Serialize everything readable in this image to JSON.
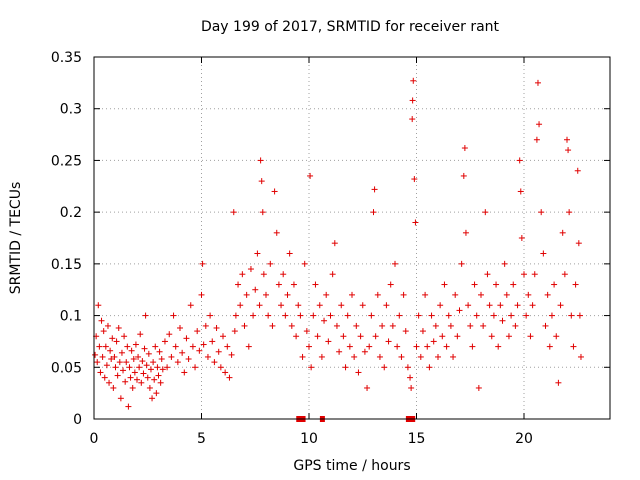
{
  "chart_data": {
    "type": "scatter",
    "title": "Day 199 of 2017, SRMTID for receiver rant",
    "xlabel": "GPS time / hours",
    "ylabel": "SRMTID / TECUs",
    "xlim": [
      0,
      24
    ],
    "ylim": [
      0,
      0.35
    ],
    "x_ticks": [
      0,
      5,
      10,
      15,
      20
    ],
    "y_ticks": [
      0,
      0.05,
      0.1,
      0.15,
      0.2,
      0.25,
      0.3,
      0.35
    ],
    "x_tick_labels": [
      "0",
      "5",
      "10",
      "15",
      "20"
    ],
    "y_tick_labels": [
      "0",
      "0.05",
      "0.1",
      "0.15",
      "0.2",
      "0.25",
      "0.3",
      "0.35"
    ],
    "grid": true,
    "marker": "+",
    "marker_color": "#e00000",
    "series": [
      {
        "name": "SRMTID",
        "points": [
          [
            0.05,
            0.062
          ],
          [
            0.1,
            0.08
          ],
          [
            0.15,
            0.055
          ],
          [
            0.2,
            0.11
          ],
          [
            0.25,
            0.07
          ],
          [
            0.3,
            0.045
          ],
          [
            0.35,
            0.095
          ],
          [
            0.4,
            0.06
          ],
          [
            0.45,
            0.085
          ],
          [
            0.5,
            0.04
          ],
          [
            0.55,
            0.07
          ],
          [
            0.6,
            0.052
          ],
          [
            0.65,
            0.09
          ],
          [
            0.7,
            0.035
          ],
          [
            0.75,
            0.066
          ],
          [
            0.8,
            0.058
          ],
          [
            0.85,
            0.078
          ],
          [
            0.9,
            0.03
          ],
          [
            0.95,
            0.06
          ],
          [
            1.0,
            0.05
          ],
          [
            1.05,
            0.075
          ],
          [
            1.1,
            0.042
          ],
          [
            1.15,
            0.088
          ],
          [
            1.2,
            0.055
          ],
          [
            1.25,
            0.02
          ],
          [
            1.3,
            0.064
          ],
          [
            1.35,
            0.047
          ],
          [
            1.4,
            0.08
          ],
          [
            1.45,
            0.036
          ],
          [
            1.5,
            0.055
          ],
          [
            1.55,
            0.07
          ],
          [
            1.6,
            0.012
          ],
          [
            1.65,
            0.05
          ],
          [
            1.7,
            0.04
          ],
          [
            1.75,
            0.066
          ],
          [
            1.8,
            0.03
          ],
          [
            1.85,
            0.058
          ],
          [
            1.9,
            0.045
          ],
          [
            1.95,
            0.072
          ],
          [
            2.0,
            0.038
          ],
          [
            2.05,
            0.06
          ],
          [
            2.1,
            0.05
          ],
          [
            2.15,
            0.082
          ],
          [
            2.2,
            0.035
          ],
          [
            2.25,
            0.056
          ],
          [
            2.3,
            0.044
          ],
          [
            2.35,
            0.068
          ],
          [
            2.4,
            0.1
          ],
          [
            2.45,
            0.052
          ],
          [
            2.5,
            0.04
          ],
          [
            2.55,
            0.063
          ],
          [
            2.6,
            0.03
          ],
          [
            2.65,
            0.048
          ],
          [
            2.7,
            0.02
          ],
          [
            2.75,
            0.055
          ],
          [
            2.8,
            0.038
          ],
          [
            2.85,
            0.07
          ],
          [
            2.9,
            0.025
          ],
          [
            2.95,
            0.05
          ],
          [
            3.0,
            0.042
          ],
          [
            3.05,
            0.065
          ],
          [
            3.1,
            0.035
          ],
          [
            3.15,
            0.058
          ],
          [
            3.2,
            0.048
          ],
          [
            3.3,
            0.075
          ],
          [
            3.4,
            0.05
          ],
          [
            3.5,
            0.082
          ],
          [
            3.6,
            0.06
          ],
          [
            3.7,
            0.1
          ],
          [
            3.8,
            0.07
          ],
          [
            3.9,
            0.055
          ],
          [
            4.0,
            0.088
          ],
          [
            4.1,
            0.064
          ],
          [
            4.2,
            0.045
          ],
          [
            4.3,
            0.078
          ],
          [
            4.4,
            0.058
          ],
          [
            4.5,
            0.11
          ],
          [
            4.6,
            0.07
          ],
          [
            4.7,
            0.05
          ],
          [
            4.8,
            0.085
          ],
          [
            4.9,
            0.066
          ],
          [
            5.0,
            0.12
          ],
          [
            5.05,
            0.15
          ],
          [
            5.1,
            0.072
          ],
          [
            5.2,
            0.09
          ],
          [
            5.3,
            0.06
          ],
          [
            5.4,
            0.1
          ],
          [
            5.5,
            0.075
          ],
          [
            5.6,
            0.055
          ],
          [
            5.7,
            0.088
          ],
          [
            5.8,
            0.065
          ],
          [
            5.9,
            0.05
          ],
          [
            6.0,
            0.08
          ],
          [
            6.1,
            0.045
          ],
          [
            6.2,
            0.07
          ],
          [
            6.3,
            0.04
          ],
          [
            6.4,
            0.062
          ],
          [
            6.5,
            0.2
          ],
          [
            6.55,
            0.085
          ],
          [
            6.6,
            0.1
          ],
          [
            6.7,
            0.13
          ],
          [
            6.8,
            0.11
          ],
          [
            6.9,
            0.14
          ],
          [
            7.0,
            0.09
          ],
          [
            7.1,
            0.12
          ],
          [
            7.2,
            0.07
          ],
          [
            7.3,
            0.145
          ],
          [
            7.4,
            0.1
          ],
          [
            7.5,
            0.125
          ],
          [
            7.6,
            0.16
          ],
          [
            7.7,
            0.11
          ],
          [
            7.75,
            0.25
          ],
          [
            7.8,
            0.23
          ],
          [
            7.85,
            0.2
          ],
          [
            7.9,
            0.14
          ],
          [
            8.0,
            0.12
          ],
          [
            8.1,
            0.1
          ],
          [
            8.2,
            0.15
          ],
          [
            8.3,
            0.09
          ],
          [
            8.4,
            0.22
          ],
          [
            8.5,
            0.18
          ],
          [
            8.6,
            0.13
          ],
          [
            8.7,
            0.11
          ],
          [
            8.8,
            0.14
          ],
          [
            8.9,
            0.1
          ],
          [
            9.0,
            0.12
          ],
          [
            9.1,
            0.16
          ],
          [
            9.2,
            0.09
          ],
          [
            9.3,
            0.13
          ],
          [
            9.4,
            0.08
          ],
          [
            9.5,
            0.11
          ],
          [
            9.6,
            0.1
          ],
          [
            9.7,
            0.06
          ],
          [
            9.8,
            0.15
          ],
          [
            9.9,
            0.085
          ],
          [
            10.0,
            0.07
          ],
          [
            10.05,
            0.235
          ],
          [
            10.1,
            0.05
          ],
          [
            10.2,
            0.1
          ],
          [
            10.3,
            0.13
          ],
          [
            10.4,
            0.08
          ],
          [
            10.5,
            0.11
          ],
          [
            10.6,
            0.06
          ],
          [
            10.7,
            0.095
          ],
          [
            10.8,
            0.12
          ],
          [
            10.9,
            0.075
          ],
          [
            11.0,
            0.1
          ],
          [
            11.1,
            0.14
          ],
          [
            11.2,
            0.17
          ],
          [
            11.3,
            0.09
          ],
          [
            11.4,
            0.065
          ],
          [
            11.5,
            0.11
          ],
          [
            11.6,
            0.08
          ],
          [
            11.7,
            0.05
          ],
          [
            11.8,
            0.1
          ],
          [
            11.9,
            0.07
          ],
          [
            12.0,
            0.12
          ],
          [
            12.1,
            0.06
          ],
          [
            12.2,
            0.09
          ],
          [
            12.3,
            0.045
          ],
          [
            12.4,
            0.08
          ],
          [
            12.5,
            0.11
          ],
          [
            12.6,
            0.065
          ],
          [
            12.7,
            0.03
          ],
          [
            12.8,
            0.07
          ],
          [
            12.9,
            0.1
          ],
          [
            13.0,
            0.2
          ],
          [
            13.05,
            0.222
          ],
          [
            13.1,
            0.08
          ],
          [
            13.2,
            0.12
          ],
          [
            13.3,
            0.06
          ],
          [
            13.4,
            0.09
          ],
          [
            13.5,
            0.05
          ],
          [
            13.6,
            0.11
          ],
          [
            13.7,
            0.075
          ],
          [
            13.8,
            0.13
          ],
          [
            13.9,
            0.09
          ],
          [
            14.0,
            0.15
          ],
          [
            14.1,
            0.07
          ],
          [
            14.2,
            0.1
          ],
          [
            14.3,
            0.06
          ],
          [
            14.4,
            0.12
          ],
          [
            14.5,
            0.085
          ],
          [
            14.6,
            0.05
          ],
          [
            14.7,
            0.04
          ],
          [
            14.75,
            0.03
          ],
          [
            14.8,
            0.29
          ],
          [
            14.82,
            0.308
          ],
          [
            14.85,
            0.327
          ],
          [
            14.9,
            0.232
          ],
          [
            14.95,
            0.19
          ],
          [
            15.0,
            0.07
          ],
          [
            15.1,
            0.1
          ],
          [
            15.2,
            0.06
          ],
          [
            15.3,
            0.085
          ],
          [
            15.4,
            0.12
          ],
          [
            15.5,
            0.07
          ],
          [
            15.6,
            0.05
          ],
          [
            15.7,
            0.1
          ],
          [
            15.8,
            0.075
          ],
          [
            15.9,
            0.09
          ],
          [
            16.0,
            0.06
          ],
          [
            16.1,
            0.11
          ],
          [
            16.2,
            0.08
          ],
          [
            16.3,
            0.13
          ],
          [
            16.4,
            0.07
          ],
          [
            16.5,
            0.1
          ],
          [
            16.6,
            0.09
          ],
          [
            16.7,
            0.06
          ],
          [
            16.8,
            0.12
          ],
          [
            16.9,
            0.08
          ],
          [
            17.0,
            0.105
          ],
          [
            17.1,
            0.15
          ],
          [
            17.2,
            0.235
          ],
          [
            17.25,
            0.262
          ],
          [
            17.3,
            0.18
          ],
          [
            17.4,
            0.11
          ],
          [
            17.5,
            0.09
          ],
          [
            17.6,
            0.07
          ],
          [
            17.7,
            0.13
          ],
          [
            17.8,
            0.1
          ],
          [
            17.9,
            0.03
          ],
          [
            18.0,
            0.12
          ],
          [
            18.1,
            0.09
          ],
          [
            18.2,
            0.2
          ],
          [
            18.3,
            0.14
          ],
          [
            18.4,
            0.11
          ],
          [
            18.5,
            0.08
          ],
          [
            18.6,
            0.1
          ],
          [
            18.7,
            0.13
          ],
          [
            18.8,
            0.07
          ],
          [
            18.9,
            0.11
          ],
          [
            19.0,
            0.095
          ],
          [
            19.1,
            0.15
          ],
          [
            19.2,
            0.12
          ],
          [
            19.3,
            0.08
          ],
          [
            19.4,
            0.1
          ],
          [
            19.5,
            0.13
          ],
          [
            19.6,
            0.09
          ],
          [
            19.7,
            0.11
          ],
          [
            19.8,
            0.25
          ],
          [
            19.85,
            0.22
          ],
          [
            19.9,
            0.175
          ],
          [
            20.0,
            0.14
          ],
          [
            20.1,
            0.1
          ],
          [
            20.2,
            0.12
          ],
          [
            20.3,
            0.08
          ],
          [
            20.4,
            0.11
          ],
          [
            20.5,
            0.14
          ],
          [
            20.6,
            0.27
          ],
          [
            20.65,
            0.325
          ],
          [
            20.7,
            0.285
          ],
          [
            20.8,
            0.2
          ],
          [
            20.9,
            0.16
          ],
          [
            21.0,
            0.09
          ],
          [
            21.1,
            0.12
          ],
          [
            21.2,
            0.07
          ],
          [
            21.3,
            0.1
          ],
          [
            21.4,
            0.13
          ],
          [
            21.5,
            0.08
          ],
          [
            21.6,
            0.035
          ],
          [
            21.7,
            0.11
          ],
          [
            21.8,
            0.18
          ],
          [
            21.9,
            0.14
          ],
          [
            22.0,
            0.27
          ],
          [
            22.05,
            0.26
          ],
          [
            22.1,
            0.2
          ],
          [
            22.2,
            0.1
          ],
          [
            22.3,
            0.07
          ],
          [
            22.4,
            0.13
          ],
          [
            22.5,
            0.24
          ],
          [
            22.55,
            0.17
          ],
          [
            22.6,
            0.1
          ],
          [
            22.65,
            0.06
          ]
        ]
      }
    ],
    "zero_value_points_x": [
      9.5,
      9.7,
      10.6,
      14.6,
      14.7,
      14.8
    ]
  }
}
